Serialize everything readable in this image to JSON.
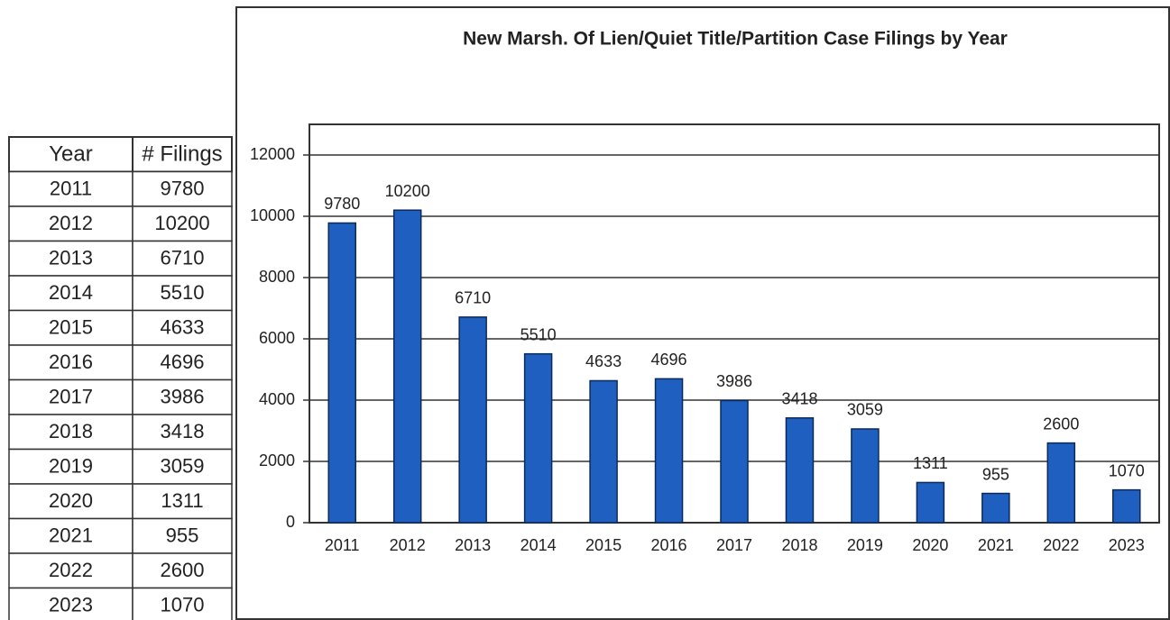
{
  "table": {
    "columns": [
      "Year",
      "# Filings"
    ],
    "rows": [
      [
        "2011",
        9780
      ],
      [
        "2012",
        10200
      ],
      [
        "2013",
        6710
      ],
      [
        "2014",
        5510
      ],
      [
        "2015",
        4633
      ],
      [
        "2016",
        4696
      ],
      [
        "2017",
        3986
      ],
      [
        "2018",
        3418
      ],
      [
        "2019",
        3059
      ],
      [
        "2020",
        1311
      ],
      [
        "2021",
        955
      ],
      [
        "2022",
        2600
      ],
      [
        "2023",
        1070
      ]
    ]
  },
  "chart_data": {
    "type": "bar",
    "title": "New Marsh. Of Lien/Quiet Title/Partition Case Filings by Year",
    "categories": [
      "2011",
      "2012",
      "2013",
      "2014",
      "2015",
      "2016",
      "2017",
      "2018",
      "2019",
      "2020",
      "2021",
      "2022",
      "2023"
    ],
    "values": [
      9780,
      10200,
      6710,
      5510,
      4633,
      4696,
      3986,
      3418,
      3059,
      1311,
      955,
      2600,
      1070
    ],
    "color": "#1f5fbf",
    "ylim": [
      0,
      13000
    ],
    "yticks": [
      0,
      2000,
      4000,
      6000,
      8000,
      10000,
      12000
    ],
    "grid": true
  }
}
